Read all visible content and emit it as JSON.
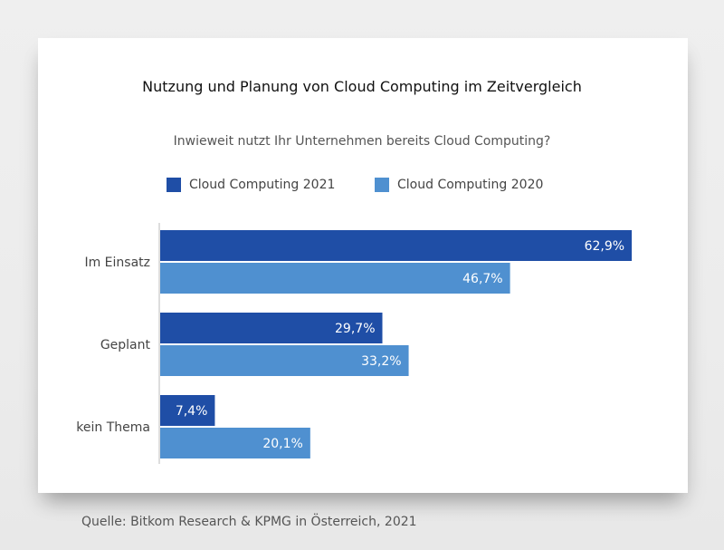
{
  "source": "Quelle: Bitkom Research & KPMG in Österreich, 2021",
  "chart_data": {
    "type": "bar",
    "orientation": "horizontal",
    "title": "Nutzung und Planung von Cloud Computing im Zeitvergleich",
    "subtitle": "Inwieweit nutzt Ihr Unternehmen bereits Cloud Computing?",
    "categories": [
      "Im Einsatz",
      "Geplant",
      "kein Thema"
    ],
    "series": [
      {
        "name": "Cloud Computing 2021",
        "color": "#1f4ea6",
        "values": [
          62.9,
          29.7,
          7.4
        ],
        "labels": [
          "62,9%",
          "29,7%",
          "7,4%"
        ]
      },
      {
        "name": "Cloud Computing 2020",
        "color": "#4f90d0",
        "values": [
          46.7,
          33.2,
          20.1
        ],
        "labels": [
          "46,7%",
          "33,2%",
          "20,1%"
        ]
      }
    ],
    "xlim": [
      0,
      100
    ],
    "grid": false,
    "legend_position": "top"
  }
}
